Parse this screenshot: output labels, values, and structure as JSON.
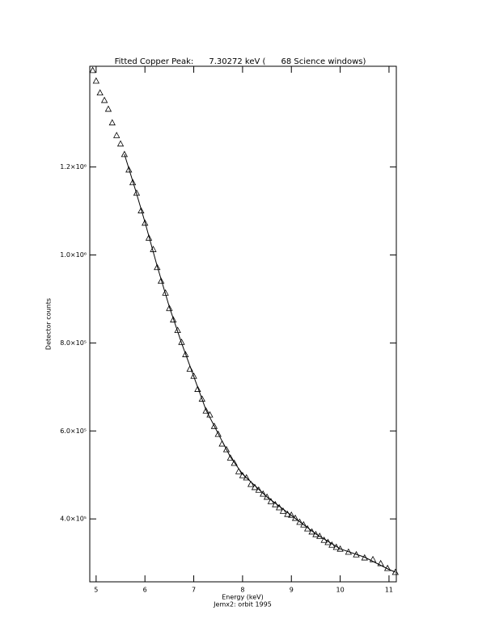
{
  "chart_data": {
    "type": "scatter",
    "title": "Fitted Copper Peak:      7.30272 keV (      68 Science windows)",
    "x_label": "Energy (keV)",
    "caption": "Jemx2: orbit 1995",
    "y_label": "Detector counts",
    "xlim": [
      4.87,
      11.15
    ],
    "ylim": [
      257000,
      1429000
    ],
    "xticks": [
      5,
      6,
      7,
      8,
      9,
      10,
      11
    ],
    "yticks": [
      {
        "value": 400000,
        "label": "4.0×10⁵"
      },
      {
        "value": 600000,
        "label": "6.0×10⁵"
      },
      {
        "value": 800000,
        "label": "8.0×10⁵"
      },
      {
        "value": 1000000,
        "label": "1.0×10⁶"
      },
      {
        "value": 1200000,
        "label": "1.2×10⁶"
      }
    ],
    "series": [
      {
        "type": "scatter",
        "marker": "triangle",
        "color": "#000000",
        "x": [
          4.93,
          5.0,
          5.08,
          5.17,
          5.25,
          5.33,
          5.42,
          5.5,
          5.58,
          5.67,
          5.75,
          5.83,
          5.92,
          6.0,
          6.08,
          6.17,
          6.25,
          6.33,
          6.42,
          6.5,
          6.58,
          6.67,
          6.75,
          6.83,
          6.92,
          7.0,
          7.08,
          7.17,
          7.25,
          7.33,
          7.42,
          7.5,
          7.58,
          7.67,
          7.75,
          7.83,
          7.92,
          8.0,
          8.08,
          8.17,
          8.25,
          8.33,
          8.42,
          8.5,
          8.58,
          8.67,
          8.75,
          8.83,
          8.92,
          9.0,
          9.08,
          9.17,
          9.25,
          9.33,
          9.42,
          9.5,
          9.58,
          9.67,
          9.75,
          9.83,
          9.92,
          10.0,
          10.17,
          10.33,
          10.5,
          10.67,
          10.83,
          10.97,
          11.13
        ],
        "values": [
          1420000,
          1396000,
          1369000,
          1352000,
          1332000,
          1301000,
          1272000,
          1253000,
          1229000,
          1194000,
          1165000,
          1141000,
          1101000,
          1073000,
          1039000,
          1013000,
          972000,
          941000,
          914000,
          879000,
          853000,
          829000,
          802000,
          774000,
          741000,
          725000,
          695000,
          673000,
          646000,
          637000,
          611000,
          593000,
          571000,
          558000,
          539000,
          527000,
          508000,
          499000,
          494000,
          479000,
          472000,
          466000,
          457000,
          450000,
          440000,
          433000,
          426000,
          418000,
          411000,
          409000,
          402000,
          393000,
          387000,
          378000,
          371000,
          365000,
          361000,
          352000,
          347000,
          341000,
          336000,
          332000,
          325000,
          319000,
          312000,
          308000,
          299000,
          288000,
          279000
        ]
      },
      {
        "type": "line",
        "color": "#000000",
        "x": [
          5.58,
          5.8,
          6.0,
          6.25,
          6.5,
          6.75,
          7.0,
          7.25,
          7.5,
          7.75,
          8.0,
          8.5,
          9.0,
          9.5,
          10.0,
          10.5,
          11.0,
          11.13
        ],
        "values": [
          1229000,
          1150000,
          1075000,
          975000,
          882000,
          800000,
          724000,
          648000,
          594000,
          541000,
          502000,
          450000,
          408000,
          366000,
          332000,
          313000,
          285000,
          279000
        ]
      }
    ]
  }
}
